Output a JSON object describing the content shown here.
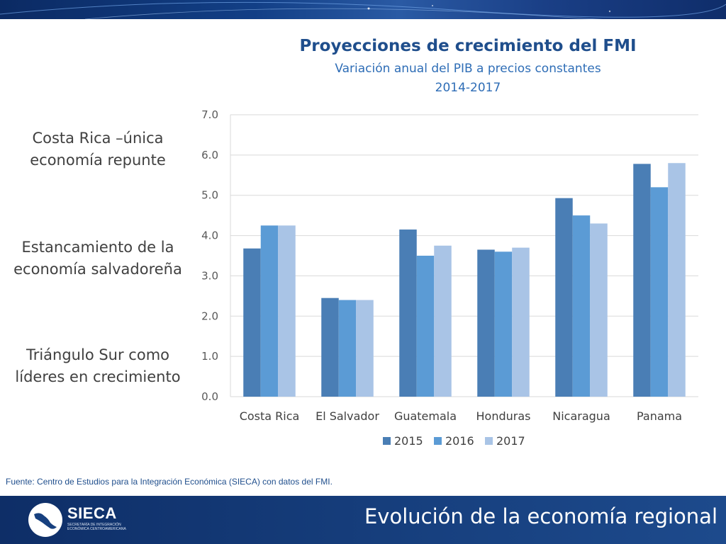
{
  "slide": {
    "bullets": [
      "Costa Rica –única economía repunte",
      "Estancamiento de la economía salvadoreña",
      "Triángulo Sur como líderes en crecimiento"
    ],
    "source": "Fuente: Centro de Estudios para la Integración Económica (SIECA) con datos del FMI.",
    "footer_title": "Evolución de la economía regional",
    "logo": {
      "name": "SIECA",
      "tagline": "SECRETARÍA DE INTEGRACIÓN ECONÓMICA CENTROAMERICANA"
    }
  },
  "chart_data": {
    "type": "bar",
    "title": "Proyecciones de crecimiento del FMI",
    "subtitle": "Variación anual del PIB a precios constantes",
    "subtitle2": "2014-2017",
    "categories": [
      "Costa Rica",
      "El Salvador",
      "Guatemala",
      "Honduras",
      "Nicaragua",
      "Panama"
    ],
    "series": [
      {
        "name": "2015",
        "color": "#4a7eb5",
        "values": [
          3.68,
          2.45,
          4.15,
          3.65,
          4.93,
          5.78
        ]
      },
      {
        "name": "2016",
        "color": "#5b9bd5",
        "values": [
          4.25,
          2.4,
          3.5,
          3.6,
          4.5,
          5.2
        ]
      },
      {
        "name": "2017",
        "color": "#a9c4e6",
        "values": [
          4.25,
          2.4,
          3.75,
          3.7,
          4.3,
          5.8
        ]
      }
    ],
    "ylim": [
      0,
      7
    ],
    "yticks": [
      "0.0",
      "1.0",
      "2.0",
      "3.0",
      "4.0",
      "5.0",
      "6.0",
      "7.0"
    ],
    "grid": true,
    "legend": "bottom-center"
  }
}
